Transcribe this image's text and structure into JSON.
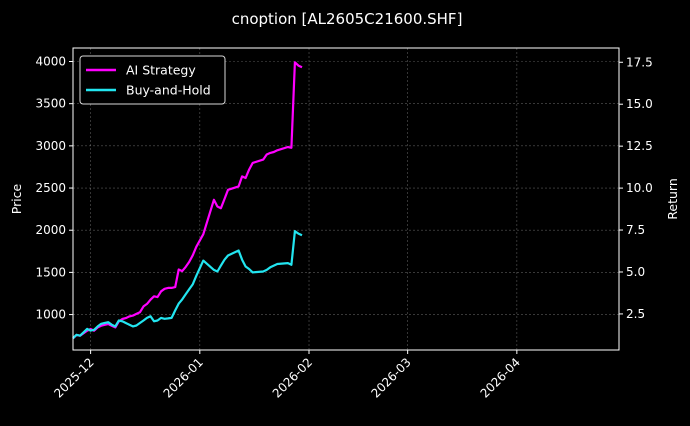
{
  "chart_data": {
    "type": "line",
    "title": "cnoption [AL2605C21600.SHF]",
    "xlabel": "",
    "ylabel": "Price",
    "y2label": "Return",
    "grid": true,
    "legend_position": "top-left",
    "xlim": [
      "2025-11-26",
      "2026-04-30"
    ],
    "ylim": [
      580,
      4160
    ],
    "y2lim": [
      0.35,
      18.35
    ],
    "x_tick_labels": [
      "2025-12",
      "2026-01",
      "2026-02",
      "2026-03",
      "2026-04"
    ],
    "x_ticks": [
      "2025-12-01",
      "2026-01-01",
      "2026-02-01",
      "2026-03-01",
      "2026-04-01"
    ],
    "y_tick_labels": [
      "1000",
      "1500",
      "2000",
      "2500",
      "3000",
      "3500",
      "4000"
    ],
    "y_ticks": [
      1000,
      1500,
      2000,
      2500,
      3000,
      3500,
      4000
    ],
    "y2_tick_labels": [
      "2.5",
      "5.0",
      "7.5",
      "10.0",
      "12.5",
      "15.0",
      "17.5"
    ],
    "y2_ticks": [
      2.5,
      5.0,
      7.5,
      10.0,
      12.5,
      15.0,
      17.5
    ],
    "series": [
      {
        "name": "AI Strategy",
        "color": "#ff00ff",
        "axis": "right",
        "x": [
          "2025-11-26",
          "2025-11-27",
          "2025-11-28",
          "2025-11-29",
          "2025-11-30",
          "2025-12-01",
          "2025-12-02",
          "2025-12-03",
          "2025-12-04",
          "2025-12-05",
          "2025-12-06",
          "2025-12-07",
          "2025-12-08",
          "2025-12-09",
          "2025-12-10",
          "2025-12-11",
          "2025-12-12",
          "2025-12-13",
          "2025-12-14",
          "2025-12-15",
          "2025-12-16",
          "2025-12-17",
          "2025-12-18",
          "2025-12-19",
          "2025-12-20",
          "2025-12-21",
          "2025-12-22",
          "2025-12-23",
          "2025-12-24",
          "2025-12-25",
          "2025-12-26",
          "2025-12-27",
          "2025-12-28",
          "2025-12-29",
          "2025-12-30",
          "2025-12-31",
          "2026-01-02",
          "2026-01-05",
          "2026-01-06",
          "2026-01-07",
          "2026-01-08",
          "2026-01-09",
          "2026-01-12",
          "2026-01-13",
          "2026-01-14",
          "2026-01-15",
          "2026-01-16",
          "2026-01-19",
          "2026-01-20",
          "2026-01-21",
          "2026-01-22",
          "2026-01-23",
          "2026-01-26",
          "2026-01-27",
          "2026-01-28",
          "2026-01-29",
          "2026-01-30"
        ],
        "values": [
          1.05,
          1.25,
          1.2,
          1.35,
          1.5,
          1.6,
          1.5,
          1.7,
          1.8,
          1.85,
          1.9,
          1.8,
          1.7,
          2.05,
          2.2,
          2.25,
          2.35,
          2.4,
          2.5,
          2.6,
          2.95,
          3.1,
          3.35,
          3.55,
          3.5,
          3.85,
          4.0,
          4.05,
          4.05,
          4.1,
          5.15,
          5.05,
          5.3,
          5.6,
          6.0,
          6.5,
          7.25,
          9.3,
          8.9,
          8.8,
          9.35,
          9.9,
          10.1,
          10.7,
          10.6,
          11.1,
          11.5,
          11.7,
          12.0,
          12.1,
          12.15,
          12.25,
          12.45,
          12.4,
          17.5,
          17.3,
          17.2
        ]
      },
      {
        "name": "Buy-and-Hold",
        "color": "#22e5f0",
        "axis": "left",
        "x": [
          "2025-11-26",
          "2025-11-27",
          "2025-11-28",
          "2025-11-29",
          "2025-11-30",
          "2025-12-01",
          "2025-12-02",
          "2025-12-03",
          "2025-12-04",
          "2025-12-05",
          "2025-12-06",
          "2025-12-07",
          "2025-12-08",
          "2025-12-09",
          "2025-12-10",
          "2025-12-11",
          "2025-12-12",
          "2025-12-13",
          "2025-12-14",
          "2025-12-15",
          "2025-12-16",
          "2025-12-17",
          "2025-12-18",
          "2025-12-19",
          "2025-12-20",
          "2025-12-21",
          "2025-12-22",
          "2025-12-23",
          "2025-12-24",
          "2025-12-25",
          "2025-12-26",
          "2025-12-27",
          "2025-12-28",
          "2025-12-29",
          "2025-12-30",
          "2025-12-31",
          "2026-01-02",
          "2026-01-05",
          "2026-01-06",
          "2026-01-07",
          "2026-01-08",
          "2026-01-09",
          "2026-01-12",
          "2026-01-13",
          "2026-01-14",
          "2026-01-15",
          "2026-01-16",
          "2026-01-19",
          "2026-01-20",
          "2026-01-21",
          "2026-01-22",
          "2026-01-23",
          "2026-01-26",
          "2026-01-27",
          "2026-01-28",
          "2026-01-29",
          "2026-01-30"
        ],
        "values": [
          720,
          760,
          750,
          790,
          830,
          810,
          820,
          860,
          890,
          900,
          910,
          880,
          860,
          930,
          920,
          900,
          880,
          860,
          870,
          900,
          930,
          960,
          980,
          920,
          930,
          960,
          950,
          955,
          960,
          1050,
          1130,
          1180,
          1240,
          1300,
          1360,
          1460,
          1640,
          1530,
          1510,
          1580,
          1650,
          1700,
          1760,
          1650,
          1570,
          1540,
          1500,
          1510,
          1530,
          1560,
          1580,
          1600,
          1610,
          1590,
          1990,
          1960,
          1940
        ]
      }
    ]
  },
  "legend": {
    "items": [
      {
        "label": "AI Strategy",
        "color": "#ff00ff"
      },
      {
        "label": "Buy-and-Hold",
        "color": "#22e5f0"
      }
    ]
  }
}
